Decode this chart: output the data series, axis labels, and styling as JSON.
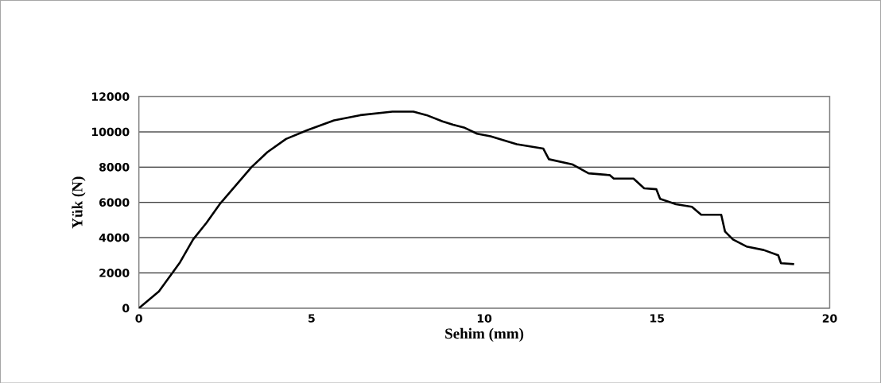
{
  "chart_data": {
    "type": "line",
    "xlabel": "Sehim (mm)",
    "ylabel": "Yük (N)",
    "series": [
      {
        "color": "#000000",
        "x": [
          0,
          0.58,
          1.19,
          1.57,
          1.96,
          2.34,
          2.8,
          3.26,
          3.72,
          4.26,
          4.88,
          5.65,
          6.41,
          7.34,
          7.95,
          8.33,
          8.79,
          9.1,
          9.41,
          9.79,
          10.18,
          10.94,
          11.71,
          11.87,
          12.56,
          13.02,
          13.63,
          13.75,
          14.32,
          14.63,
          14.98,
          15.09,
          15.55,
          16.01,
          16.28,
          16.86,
          16.97,
          17.2,
          17.59,
          18.09,
          18.51,
          18.59,
          18.97
        ],
        "values": [
          0,
          950,
          2600,
          3900,
          4850,
          5900,
          6950,
          8000,
          8850,
          9600,
          10100,
          10650,
          10950,
          11150,
          11150,
          10950,
          10600,
          10400,
          10250,
          9900,
          9750,
          9300,
          9050,
          8450,
          8150,
          7650,
          7550,
          7350,
          7350,
          6800,
          6750,
          6200,
          5900,
          5750,
          5300,
          5300,
          4350,
          3900,
          3500,
          3300,
          3000,
          2550,
          2500
        ]
      }
    ],
    "xlim": [
      0,
      20
    ],
    "ylim": [
      0,
      12000
    ],
    "xticks": [
      0,
      5,
      10,
      15,
      20
    ],
    "yticks": [
      0,
      2000,
      4000,
      6000,
      8000,
      10000,
      12000
    ],
    "grid": "y",
    "marker": "none",
    "line_style": "solid"
  }
}
